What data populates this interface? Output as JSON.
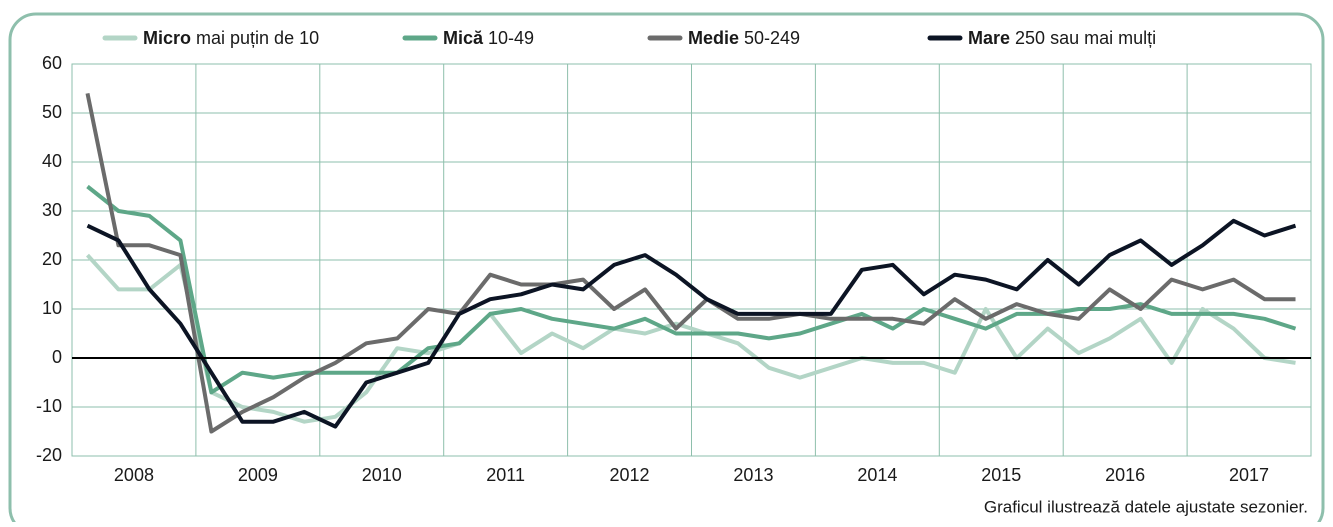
{
  "chart_data": {
    "type": "line",
    "categories": [
      null,
      "2008",
      null,
      null,
      null,
      "2009",
      null,
      null,
      null,
      "2010",
      null,
      null,
      null,
      "2011",
      null,
      null,
      null,
      "2012",
      null,
      null,
      null,
      "2013",
      null,
      null,
      null,
      "2014",
      null,
      null,
      null,
      "2015",
      null,
      null,
      null,
      "2016",
      null,
      null,
      null,
      "2017",
      null,
      null
    ],
    "series": [
      {
        "name": "Micro mai puțin de 10",
        "color": "#b3d5c6",
        "values": [
          21,
          14,
          14,
          19,
          -7,
          -10,
          -11,
          -13,
          -12,
          -7,
          2,
          1,
          3,
          9,
          1,
          5,
          2,
          6,
          5,
          7,
          5,
          3,
          -2,
          -4,
          -2,
          0,
          -1,
          -1,
          -3,
          10,
          0,
          6,
          1,
          4,
          8,
          -1,
          10,
          6,
          0,
          -1
        ]
      },
      {
        "name": "Mică 10-49",
        "color": "#5ea788",
        "values": [
          35,
          30,
          29,
          24,
          -7,
          -3,
          -4,
          -3,
          -3,
          -3,
          -3,
          2,
          3,
          9,
          10,
          8,
          7,
          6,
          8,
          5,
          5,
          5,
          4,
          5,
          7,
          9,
          6,
          10,
          8,
          6,
          9,
          9,
          10,
          10,
          11,
          9,
          9,
          9,
          8,
          6
        ]
      },
      {
        "name": "Medie 50-249",
        "color": "#6b6b6b",
        "values": [
          54,
          23,
          23,
          21,
          -15,
          -11,
          -8,
          -4,
          -1,
          3,
          4,
          10,
          9,
          17,
          15,
          15,
          16,
          10,
          14,
          6,
          12,
          8,
          8,
          9,
          8,
          8,
          8,
          7,
          12,
          8,
          11,
          9,
          8,
          14,
          10,
          16,
          14,
          16,
          12,
          12
        ]
      },
      {
        "name": "Mare 250 sau mai mulți",
        "color": "#0c1424",
        "values": [
          27,
          24,
          14,
          7,
          -3,
          -13,
          -13,
          -11,
          -14,
          -5,
          -3,
          -1,
          9,
          12,
          13,
          15,
          14,
          19,
          21,
          17,
          12,
          9,
          9,
          9,
          9,
          18,
          19,
          13,
          17,
          16,
          14,
          20,
          15,
          21,
          24,
          19,
          23,
          28,
          25,
          27
        ]
      }
    ],
    "ylim": [
      -20,
      60
    ],
    "yticks": [
      -20,
      -10,
      0,
      10,
      20,
      30,
      40,
      50,
      60
    ],
    "grid": true,
    "note": "Graficul ilustrează datele ajustate sezonier."
  }
}
